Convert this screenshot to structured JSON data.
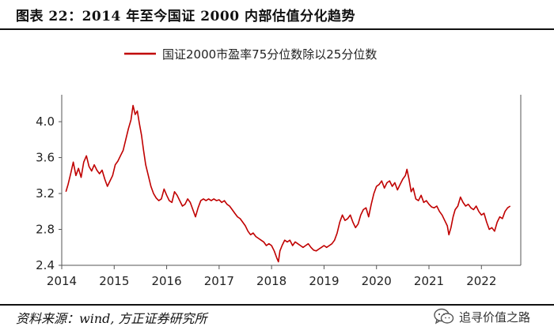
{
  "header": {
    "title": "图表 22：2014 年至今国证 2000 内部估值分化趋势"
  },
  "footer": {
    "source": "资料来源：wind, 方正证券研究所",
    "watermark": "追寻价值之路",
    "watermark_icon": "wechat-icon"
  },
  "colors": {
    "series": "#c00000",
    "axis": "#555555",
    "text": "#222222"
  },
  "chart_data": {
    "type": "line",
    "title": "",
    "xlabel": "",
    "ylabel": "",
    "legend_position": "top-center",
    "grid": false,
    "xlim": [
      2014.0,
      2022.75
    ],
    "ylim": [
      2.4,
      4.3
    ],
    "x_ticks": [
      "2014",
      "2015",
      "2016",
      "2017",
      "2018",
      "2019",
      "2020",
      "2021",
      "2022"
    ],
    "y_ticks": [
      "2.4",
      "2.8",
      "3.2",
      "3.6",
      "4.0"
    ],
    "series": [
      {
        "name": "国证2000市盈率75分位数除以25分位数",
        "points": [
          [
            2014.08,
            3.22
          ],
          [
            2014.12,
            3.3
          ],
          [
            2014.17,
            3.42
          ],
          [
            2014.22,
            3.55
          ],
          [
            2014.27,
            3.4
          ],
          [
            2014.32,
            3.48
          ],
          [
            2014.37,
            3.38
          ],
          [
            2014.42,
            3.55
          ],
          [
            2014.47,
            3.62
          ],
          [
            2014.52,
            3.5
          ],
          [
            2014.57,
            3.45
          ],
          [
            2014.62,
            3.52
          ],
          [
            2014.67,
            3.46
          ],
          [
            2014.72,
            3.42
          ],
          [
            2014.77,
            3.46
          ],
          [
            2014.82,
            3.36
          ],
          [
            2014.87,
            3.28
          ],
          [
            2014.92,
            3.34
          ],
          [
            2014.97,
            3.4
          ],
          [
            2015.02,
            3.52
          ],
          [
            2015.07,
            3.56
          ],
          [
            2015.12,
            3.62
          ],
          [
            2015.17,
            3.68
          ],
          [
            2015.22,
            3.8
          ],
          [
            2015.27,
            3.92
          ],
          [
            2015.32,
            4.02
          ],
          [
            2015.36,
            4.18
          ],
          [
            2015.4,
            4.08
          ],
          [
            2015.44,
            4.12
          ],
          [
            2015.48,
            3.98
          ],
          [
            2015.52,
            3.85
          ],
          [
            2015.56,
            3.68
          ],
          [
            2015.6,
            3.52
          ],
          [
            2015.65,
            3.4
          ],
          [
            2015.7,
            3.28
          ],
          [
            2015.75,
            3.2
          ],
          [
            2015.8,
            3.15
          ],
          [
            2015.85,
            3.12
          ],
          [
            2015.9,
            3.14
          ],
          [
            2015.95,
            3.25
          ],
          [
            2016.0,
            3.18
          ],
          [
            2016.05,
            3.12
          ],
          [
            2016.1,
            3.1
          ],
          [
            2016.15,
            3.22
          ],
          [
            2016.2,
            3.18
          ],
          [
            2016.25,
            3.12
          ],
          [
            2016.3,
            3.06
          ],
          [
            2016.35,
            3.08
          ],
          [
            2016.4,
            3.14
          ],
          [
            2016.45,
            3.1
          ],
          [
            2016.5,
            3.02
          ],
          [
            2016.55,
            2.94
          ],
          [
            2016.6,
            3.04
          ],
          [
            2016.65,
            3.12
          ],
          [
            2016.7,
            3.14
          ],
          [
            2016.75,
            3.12
          ],
          [
            2016.8,
            3.14
          ],
          [
            2016.85,
            3.12
          ],
          [
            2016.9,
            3.14
          ],
          [
            2016.95,
            3.12
          ],
          [
            2017.0,
            3.13
          ],
          [
            2017.05,
            3.1
          ],
          [
            2017.1,
            3.12
          ],
          [
            2017.15,
            3.08
          ],
          [
            2017.2,
            3.06
          ],
          [
            2017.25,
            3.02
          ],
          [
            2017.3,
            2.98
          ],
          [
            2017.35,
            2.94
          ],
          [
            2017.4,
            2.92
          ],
          [
            2017.45,
            2.88
          ],
          [
            2017.5,
            2.84
          ],
          [
            2017.55,
            2.78
          ],
          [
            2017.6,
            2.74
          ],
          [
            2017.65,
            2.76
          ],
          [
            2017.7,
            2.72
          ],
          [
            2017.75,
            2.7
          ],
          [
            2017.8,
            2.68
          ],
          [
            2017.85,
            2.66
          ],
          [
            2017.9,
            2.62
          ],
          [
            2017.95,
            2.64
          ],
          [
            2018.0,
            2.62
          ],
          [
            2018.05,
            2.56
          ],
          [
            2018.1,
            2.48
          ],
          [
            2018.13,
            2.44
          ],
          [
            2018.16,
            2.56
          ],
          [
            2018.2,
            2.62
          ],
          [
            2018.25,
            2.68
          ],
          [
            2018.3,
            2.66
          ],
          [
            2018.35,
            2.68
          ],
          [
            2018.4,
            2.62
          ],
          [
            2018.45,
            2.66
          ],
          [
            2018.5,
            2.64
          ],
          [
            2018.55,
            2.62
          ],
          [
            2018.6,
            2.6
          ],
          [
            2018.65,
            2.62
          ],
          [
            2018.7,
            2.64
          ],
          [
            2018.75,
            2.6
          ],
          [
            2018.8,
            2.57
          ],
          [
            2018.85,
            2.56
          ],
          [
            2018.9,
            2.58
          ],
          [
            2018.95,
            2.6
          ],
          [
            2019.0,
            2.62
          ],
          [
            2019.05,
            2.6
          ],
          [
            2019.1,
            2.62
          ],
          [
            2019.15,
            2.64
          ],
          [
            2019.2,
            2.68
          ],
          [
            2019.25,
            2.76
          ],
          [
            2019.3,
            2.88
          ],
          [
            2019.35,
            2.96
          ],
          [
            2019.4,
            2.9
          ],
          [
            2019.45,
            2.92
          ],
          [
            2019.5,
            2.96
          ],
          [
            2019.55,
            2.88
          ],
          [
            2019.6,
            2.82
          ],
          [
            2019.65,
            2.86
          ],
          [
            2019.7,
            2.96
          ],
          [
            2019.75,
            3.02
          ],
          [
            2019.8,
            3.04
          ],
          [
            2019.85,
            2.94
          ],
          [
            2019.9,
            3.08
          ],
          [
            2019.95,
            3.2
          ],
          [
            2020.0,
            3.28
          ],
          [
            2020.05,
            3.3
          ],
          [
            2020.1,
            3.34
          ],
          [
            2020.15,
            3.26
          ],
          [
            2020.2,
            3.32
          ],
          [
            2020.25,
            3.34
          ],
          [
            2020.3,
            3.28
          ],
          [
            2020.35,
            3.32
          ],
          [
            2020.4,
            3.24
          ],
          [
            2020.45,
            3.3
          ],
          [
            2020.5,
            3.36
          ],
          [
            2020.55,
            3.4
          ],
          [
            2020.58,
            3.47
          ],
          [
            2020.62,
            3.36
          ],
          [
            2020.66,
            3.22
          ],
          [
            2020.7,
            3.26
          ],
          [
            2020.75,
            3.14
          ],
          [
            2020.8,
            3.12
          ],
          [
            2020.85,
            3.18
          ],
          [
            2020.9,
            3.1
          ],
          [
            2020.95,
            3.12
          ],
          [
            2021.0,
            3.08
          ],
          [
            2021.05,
            3.05
          ],
          [
            2021.1,
            3.04
          ],
          [
            2021.15,
            3.06
          ],
          [
            2021.2,
            3.0
          ],
          [
            2021.25,
            2.96
          ],
          [
            2021.3,
            2.9
          ],
          [
            2021.35,
            2.84
          ],
          [
            2021.38,
            2.74
          ],
          [
            2021.42,
            2.82
          ],
          [
            2021.46,
            2.94
          ],
          [
            2021.5,
            3.02
          ],
          [
            2021.55,
            3.06
          ],
          [
            2021.6,
            3.16
          ],
          [
            2021.65,
            3.1
          ],
          [
            2021.7,
            3.06
          ],
          [
            2021.75,
            3.08
          ],
          [
            2021.8,
            3.04
          ],
          [
            2021.85,
            3.02
          ],
          [
            2021.9,
            3.06
          ],
          [
            2021.95,
            3.0
          ],
          [
            2022.0,
            2.96
          ],
          [
            2022.05,
            2.98
          ],
          [
            2022.1,
            2.88
          ],
          [
            2022.15,
            2.8
          ],
          [
            2022.2,
            2.82
          ],
          [
            2022.25,
            2.78
          ],
          [
            2022.3,
            2.88
          ],
          [
            2022.35,
            2.94
          ],
          [
            2022.4,
            2.92
          ],
          [
            2022.45,
            3.0
          ],
          [
            2022.5,
            3.04
          ],
          [
            2022.55,
            3.06
          ]
        ]
      }
    ]
  }
}
